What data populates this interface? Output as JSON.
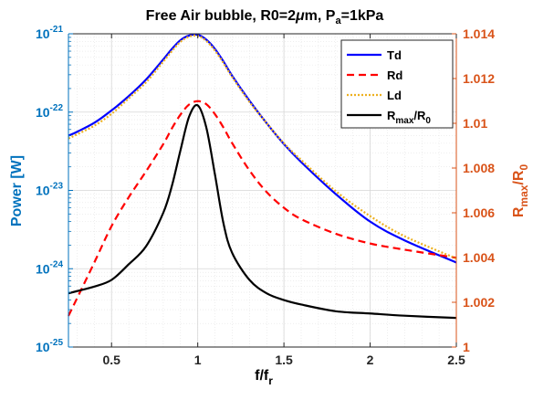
{
  "chart_data": {
    "type": "line",
    "title": "Free Air bubble, R0=2μm, P_a=1kPa",
    "xlabel": "f/f_r",
    "ylabel_left": "Power [W]",
    "ylabel_right": "R_max/R_0",
    "xlim": [
      0.25,
      2.5
    ],
    "xticks": [
      0.5,
      1,
      1.5,
      2,
      2.5
    ],
    "xtick_labels": [
      "0.5",
      "1",
      "1.5",
      "2",
      "2.5"
    ],
    "ylim_left": [
      1e-25,
      1e-21
    ],
    "yscale_left": "log",
    "yticks_left_exponents": [
      -25,
      -24,
      -23,
      -22,
      -21
    ],
    "ytick_left_base": "10",
    "ylim_right": [
      1.0,
      1.014
    ],
    "yticks_right": [
      1,
      1.002,
      1.004,
      1.006,
      1.008,
      1.01,
      1.012,
      1.014
    ],
    "ytick_right_labels": [
      "1",
      "1.002",
      "1.004",
      "1.006",
      "1.008",
      "1.01",
      "1.012",
      "1.014"
    ],
    "grid": true,
    "legend_position": "top-right",
    "colors": {
      "left_axis": "#0072BD",
      "right_axis": "#D95319"
    },
    "x": [
      0.25,
      0.3,
      0.4,
      0.5,
      0.6,
      0.7,
      0.8,
      0.85,
      0.9,
      0.95,
      1.0,
      1.05,
      1.1,
      1.15,
      1.2,
      1.3,
      1.4,
      1.5,
      1.6,
      1.8,
      2.0,
      2.2,
      2.5
    ],
    "series": [
      {
        "name": "Td",
        "axis": "left",
        "color": "#0000FF",
        "dash": "solid",
        "values": [
          5e-23,
          5.6e-23,
          7.3e-23,
          1.05e-22,
          1.6e-22,
          2.6e-22,
          4.7e-22,
          6.4e-22,
          8.3e-22,
          9.5e-22,
          9.7e-22,
          8.4e-22,
          6.4e-22,
          4.4e-22,
          2.9e-22,
          1.4e-22,
          7.2e-23,
          3.9e-23,
          2.3e-23,
          9e-24,
          4e-24,
          2.3e-24,
          1.2e-24
        ]
      },
      {
        "name": "Rd",
        "axis": "left",
        "color": "#FF0000",
        "dash": "dashed",
        "values": [
          2.5e-25,
          4.2e-25,
          1.2e-24,
          3.5e-24,
          8.2e-24,
          1.75e-23,
          3.9e-23,
          6.2e-23,
          9.3e-23,
          1.25e-22,
          1.38e-22,
          1.26e-22,
          9.4e-23,
          6.3e-23,
          4e-23,
          1.8e-23,
          9.5e-24,
          6e-24,
          4.3e-24,
          2.8e-24,
          2.1e-24,
          1.75e-24,
          1.38e-24
        ]
      },
      {
        "name": "Ld",
        "axis": "left",
        "color": "#EDB120",
        "dash": "dotted",
        "values": [
          4.6e-23,
          5.2e-23,
          6.7e-23,
          9.5e-23,
          1.5e-22,
          2.4e-22,
          4.4e-22,
          6e-22,
          7.9e-22,
          9.2e-22,
          9.4e-22,
          8.1e-22,
          6.1e-22,
          4.2e-22,
          2.8e-22,
          1.35e-22,
          7.2e-23,
          4e-23,
          2.45e-23,
          9.8e-24,
          4.7e-24,
          2.6e-24,
          1.35e-24
        ]
      },
      {
        "name": "R_max/R_0",
        "axis": "right",
        "color": "#000000",
        "dash": "solid",
        "values": [
          1.0024,
          1.0025,
          1.0027,
          1.003,
          1.0037,
          1.0045,
          1.006,
          1.0072,
          1.0088,
          1.0103,
          1.0108,
          1.0098,
          1.0077,
          1.0055,
          1.0042,
          1.003,
          1.0024,
          1.0021,
          1.0019,
          1.0016,
          1.0015,
          1.0014,
          1.0013
        ]
      }
    ]
  }
}
